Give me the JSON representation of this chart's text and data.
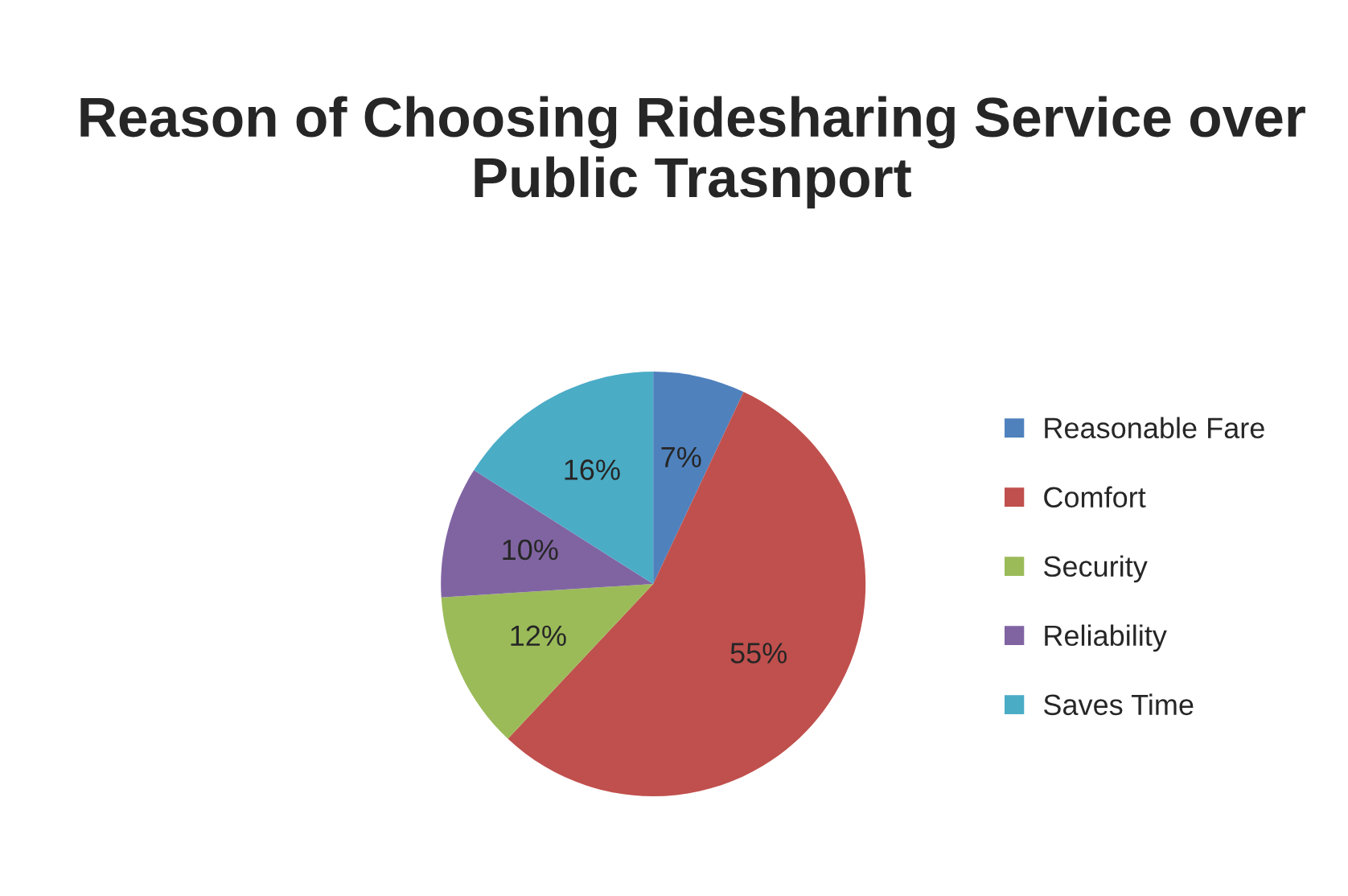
{
  "chart_data": {
    "type": "pie",
    "title": "Reason of Choosing Ridesharing Service over Public Trasnport",
    "categories": [
      "Reasonable Fare",
      "Comfort",
      "Security",
      "Reliability",
      "Saves Time"
    ],
    "values": [
      7,
      55,
      12,
      10,
      16
    ],
    "colors": [
      "#4f81bd",
      "#c0504d",
      "#9bbb59",
      "#8064a2",
      "#4bacc6"
    ],
    "value_labels": [
      "7%",
      "55%",
      "12%",
      "10%",
      "16%"
    ],
    "legend": "right"
  }
}
